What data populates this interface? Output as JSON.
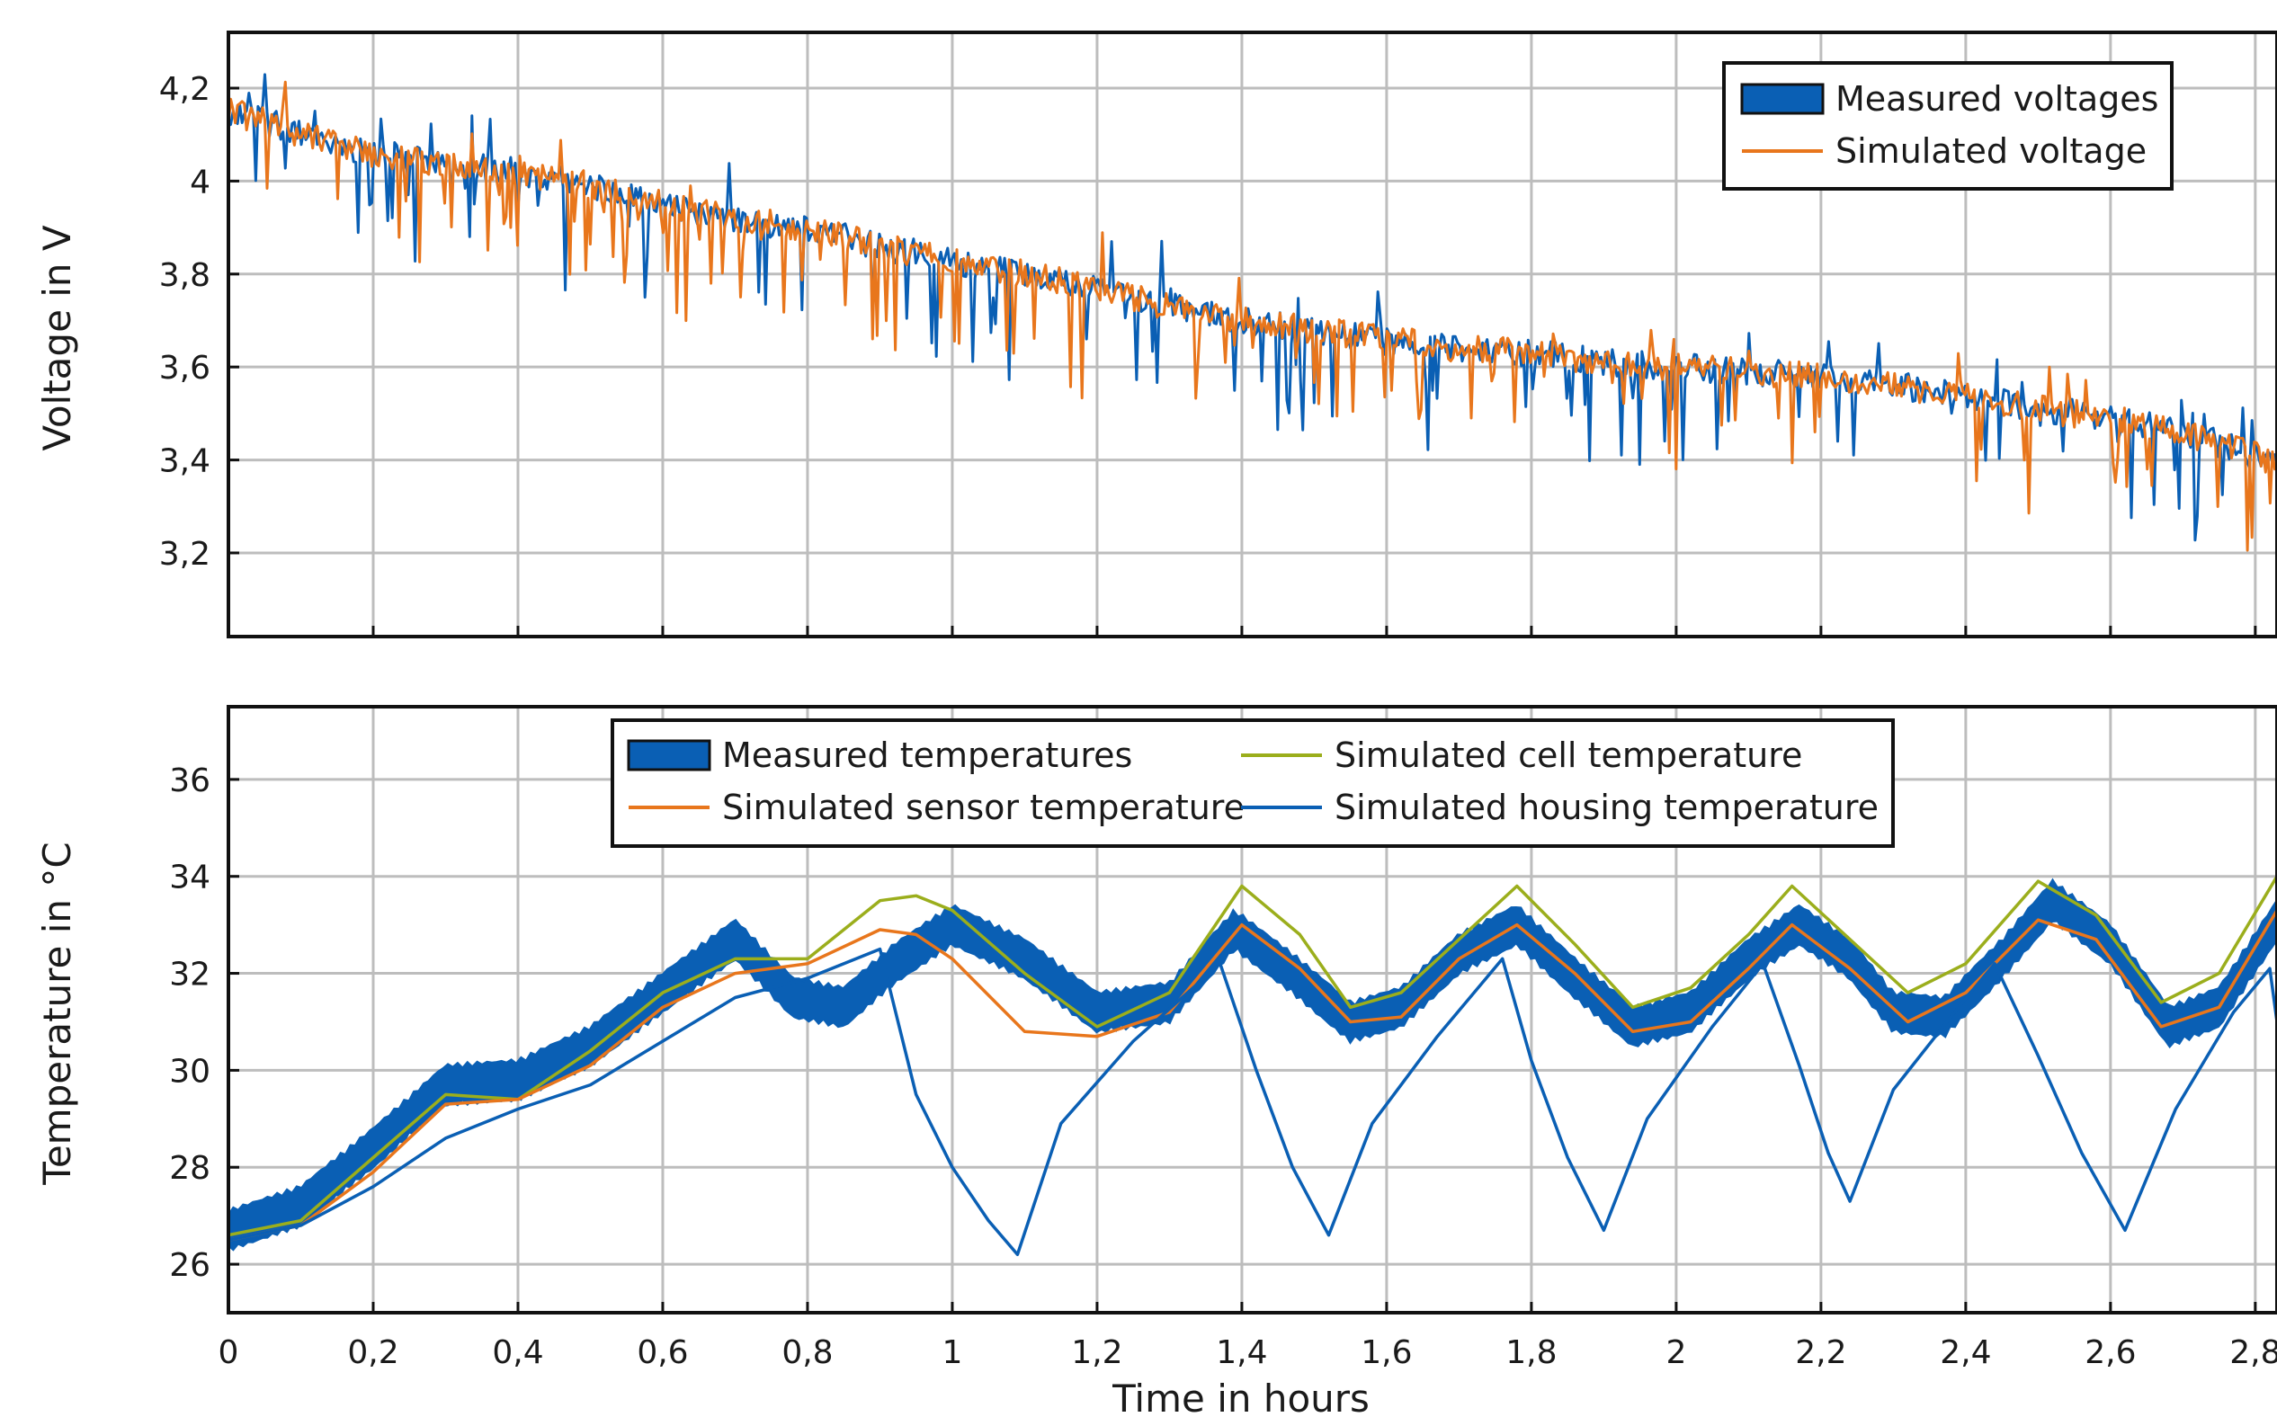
{
  "chart_data": [
    {
      "type": "line",
      "ylabel": "Voltage in V",
      "xlim": [
        0,
        2.83
      ],
      "ylim": [
        3.02,
        4.32
      ],
      "xticks": [
        0,
        0.2,
        0.4,
        0.6,
        0.8,
        1,
        1.2,
        1.4,
        1.6,
        1.8,
        2,
        2.2,
        2.4,
        2.6,
        2.8
      ],
      "yticks": [
        3.2,
        3.4,
        3.6,
        3.8,
        4,
        4.2
      ],
      "ytick_labels": [
        "3,2",
        "3,4",
        "3,6",
        "3,8",
        "4",
        "4,2"
      ],
      "grid": true,
      "legend_position": "top-right",
      "series": [
        {
          "name": "Measured voltages",
          "style": "band",
          "color": "#0a5fb4",
          "x": [
            0,
            0.05,
            0.1,
            0.2,
            0.3,
            0.4,
            0.5,
            0.6,
            0.7,
            0.8,
            0.9,
            1.0,
            1.1,
            1.2,
            1.3,
            1.4,
            1.5,
            1.6,
            1.7,
            1.8,
            1.9,
            2.0,
            2.1,
            2.2,
            2.3,
            2.4,
            2.5,
            2.6,
            2.7,
            2.8,
            2.83
          ],
          "y": [
            4.15,
            4.13,
            4.1,
            4.06,
            4.04,
            4.02,
            3.99,
            3.95,
            3.92,
            3.9,
            3.86,
            3.83,
            3.8,
            3.77,
            3.73,
            3.7,
            3.68,
            3.66,
            3.64,
            3.63,
            3.61,
            3.6,
            3.59,
            3.58,
            3.56,
            3.54,
            3.51,
            3.49,
            3.46,
            3.41,
            3.39
          ]
        },
        {
          "name": "Simulated voltage",
          "style": "noisy-line",
          "color": "#e8761c",
          "x": [
            0,
            0.05,
            0.1,
            0.2,
            0.3,
            0.4,
            0.5,
            0.6,
            0.7,
            0.8,
            0.9,
            1.0,
            1.1,
            1.2,
            1.3,
            1.4,
            1.5,
            1.6,
            1.7,
            1.8,
            1.9,
            2.0,
            2.1,
            2.2,
            2.3,
            2.4,
            2.5,
            2.6,
            2.7,
            2.8,
            2.83
          ],
          "y": [
            4.15,
            4.13,
            4.1,
            4.06,
            4.04,
            4.02,
            3.99,
            3.95,
            3.92,
            3.9,
            3.86,
            3.83,
            3.8,
            3.77,
            3.73,
            3.7,
            3.68,
            3.66,
            3.64,
            3.63,
            3.61,
            3.6,
            3.59,
            3.58,
            3.56,
            3.54,
            3.51,
            3.49,
            3.46,
            3.41,
            3.39
          ]
        }
      ]
    },
    {
      "type": "line",
      "xlabel": "Time in hours",
      "ylabel": "Temperature in °C",
      "xlim": [
        0,
        2.83
      ],
      "ylim": [
        25,
        37.5
      ],
      "xticks": [
        0,
        0.2,
        0.4,
        0.6,
        0.8,
        1,
        1.2,
        1.4,
        1.6,
        1.8,
        2,
        2.2,
        2.4,
        2.6,
        2.8
      ],
      "xtick_labels": [
        "0",
        "0,2",
        "0,4",
        "0,6",
        "0,8",
        "1",
        "1,2",
        "1,4",
        "1,6",
        "1,8",
        "2",
        "2,2",
        "2,4",
        "2,6",
        "2,8"
      ],
      "yticks": [
        26,
        28,
        30,
        32,
        34,
        36
      ],
      "ytick_labels": [
        "26",
        "28",
        "30",
        "32",
        "34",
        "36"
      ],
      "grid": true,
      "legend_position": "top-center",
      "series": [
        {
          "name": "Measured temperatures",
          "style": "band",
          "color": "#0a5fb4",
          "x": [
            0,
            0.1,
            0.2,
            0.3,
            0.4,
            0.5,
            0.6,
            0.7,
            0.78,
            0.85,
            0.92,
            1.0,
            1.1,
            1.2,
            1.3,
            1.39,
            1.47,
            1.55,
            1.62,
            1.7,
            1.78,
            1.86,
            1.94,
            2.02,
            2.1,
            2.17,
            2.24,
            2.3,
            2.37,
            2.45,
            2.52,
            2.6,
            2.68,
            2.75,
            2.83
          ],
          "y": [
            26.7,
            27.2,
            28.4,
            29.7,
            29.8,
            30.5,
            31.6,
            32.7,
            31.5,
            31.3,
            32.2,
            33.0,
            32.3,
            31.2,
            31.4,
            32.9,
            32.0,
            31.0,
            31.3,
            32.4,
            33.0,
            31.9,
            30.9,
            31.2,
            32.3,
            33.0,
            32.3,
            31.2,
            31.1,
            32.3,
            33.5,
            32.6,
            30.9,
            31.3,
            33.1
          ]
        },
        {
          "name": "Simulated cell temperature",
          "color": "#9bae1c",
          "x": [
            0,
            0.1,
            0.2,
            0.3,
            0.4,
            0.5,
            0.6,
            0.7,
            0.8,
            0.9,
            0.95,
            1.0,
            1.1,
            1.2,
            1.3,
            1.4,
            1.48,
            1.55,
            1.62,
            1.7,
            1.78,
            1.86,
            1.94,
            2.02,
            2.1,
            2.16,
            2.24,
            2.32,
            2.4,
            2.5,
            2.58,
            2.67,
            2.75,
            2.83
          ],
          "y": [
            26.6,
            26.9,
            28.2,
            29.5,
            29.4,
            30.4,
            31.6,
            32.3,
            32.3,
            33.5,
            33.6,
            33.3,
            32.0,
            30.9,
            31.6,
            33.8,
            32.8,
            31.3,
            31.6,
            32.7,
            33.8,
            32.6,
            31.3,
            31.7,
            32.8,
            33.8,
            32.7,
            31.6,
            32.2,
            33.9,
            33.2,
            31.4,
            32.0,
            34.0
          ]
        },
        {
          "name": "Simulated sensor temperature",
          "color": "#e8761c",
          "x": [
            0,
            0.1,
            0.2,
            0.3,
            0.4,
            0.5,
            0.6,
            0.7,
            0.8,
            0.9,
            0.95,
            1.0,
            1.1,
            1.2,
            1.3,
            1.4,
            1.48,
            1.55,
            1.62,
            1.7,
            1.78,
            1.86,
            1.94,
            2.02,
            2.1,
            2.16,
            2.24,
            2.32,
            2.4,
            2.5,
            2.58,
            2.67,
            2.75,
            2.83
          ],
          "y": [
            26.5,
            26.8,
            27.9,
            29.3,
            29.4,
            30.1,
            31.3,
            32.0,
            32.2,
            32.9,
            32.8,
            32.3,
            30.8,
            30.7,
            31.2,
            33.0,
            32.1,
            31.0,
            31.1,
            32.3,
            33.0,
            32.0,
            30.8,
            31.0,
            32.1,
            33.0,
            32.1,
            31.0,
            31.6,
            33.1,
            32.7,
            30.9,
            31.3,
            33.3
          ]
        },
        {
          "name": "Simulated housing temperature",
          "color": "#0a5fb4",
          "x": [
            0,
            0.1,
            0.2,
            0.3,
            0.4,
            0.5,
            0.6,
            0.7,
            0.8,
            0.9,
            0.95,
            1.0,
            1.05,
            1.09,
            1.15,
            1.25,
            1.37,
            1.42,
            1.47,
            1.52,
            1.58,
            1.67,
            1.76,
            1.8,
            1.85,
            1.9,
            1.96,
            2.05,
            2.12,
            2.17,
            2.21,
            2.24,
            2.3,
            2.39,
            2.44,
            2.5,
            2.56,
            2.62,
            2.69,
            2.77,
            2.82,
            2.83
          ],
          "y": [
            26.5,
            26.8,
            27.6,
            28.6,
            29.2,
            29.7,
            30.6,
            31.5,
            31.9,
            32.5,
            29.5,
            28.0,
            26.9,
            26.2,
            28.9,
            30.6,
            32.2,
            30.0,
            28.0,
            26.6,
            28.9,
            30.7,
            32.3,
            30.2,
            28.2,
            26.7,
            29.0,
            30.9,
            32.2,
            30.1,
            28.3,
            27.3,
            29.6,
            31.3,
            32.2,
            30.3,
            28.3,
            26.7,
            29.2,
            31.2,
            32.1,
            31.0
          ]
        }
      ]
    }
  ]
}
